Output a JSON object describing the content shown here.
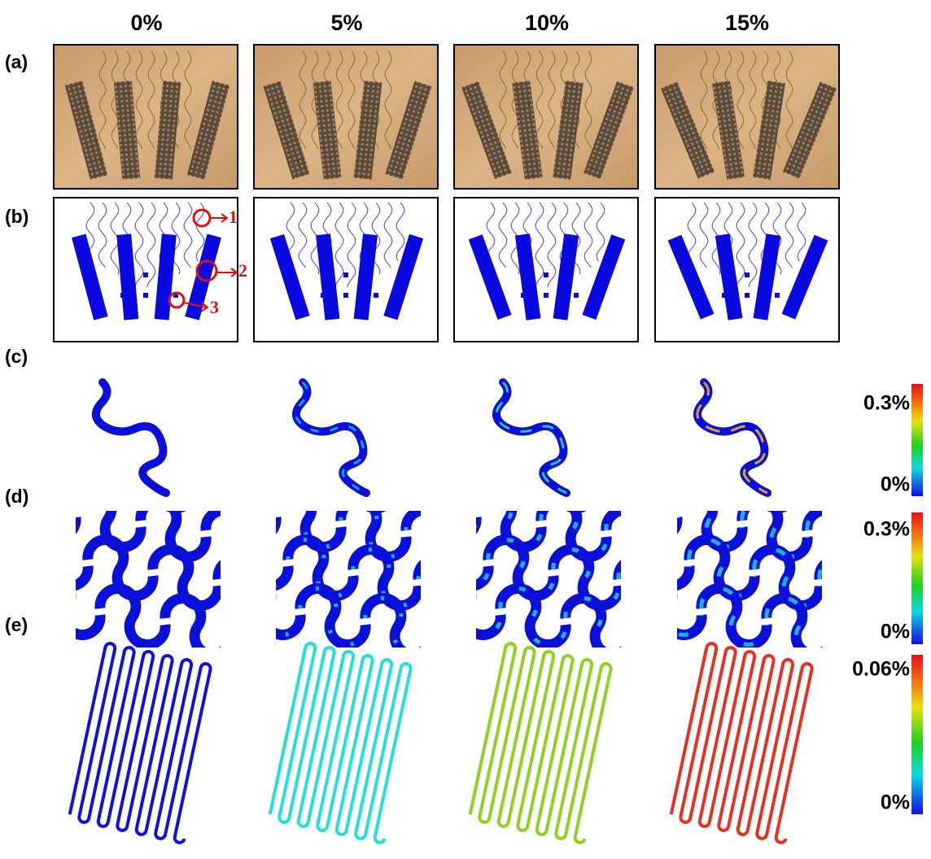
{
  "columns": [
    "0%",
    "5%",
    "10%",
    "15%"
  ],
  "rows": [
    "(a)",
    "(b)",
    "(c)",
    "(d)",
    "(e)"
  ],
  "annotations": [
    "1",
    "2",
    "3"
  ],
  "colorbars": [
    {
      "max": "0.3%",
      "min": "0%"
    },
    {
      "max": "0.3%",
      "min": "0%"
    },
    {
      "max": "0.06%",
      "min": "0%"
    }
  ]
}
